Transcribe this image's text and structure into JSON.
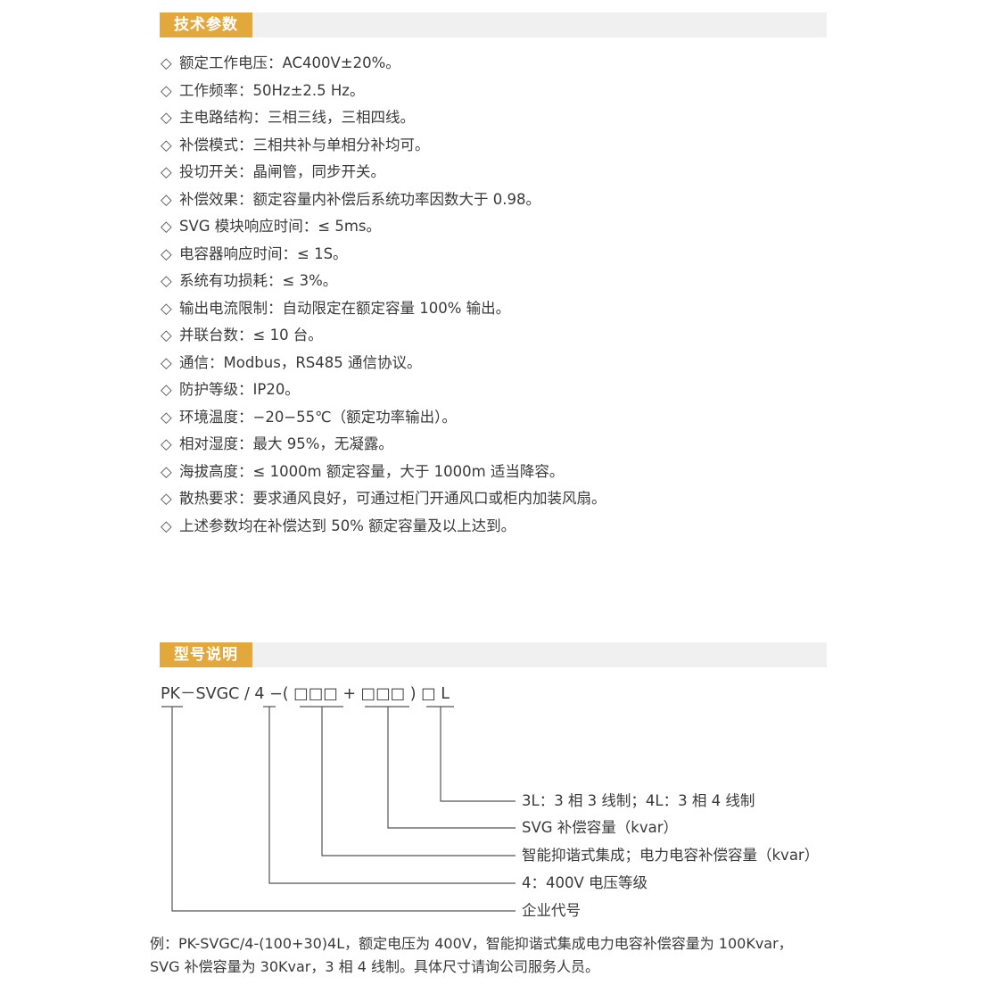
{
  "section1": {
    "title": "技术参数",
    "bullet": "◇",
    "items": [
      "额定工作电压：AC400V±20%。",
      "工作频率：50Hz±2.5 Hz。",
      "主电路结构：三相三线，三相四线。",
      "补偿模式：三相共补与单相分补均可。",
      "投切开关：晶闸管，同步开关。",
      "补偿效果：额定容量内补偿后系统功率因数大于 0.98。",
      "SVG 模块响应时间：≤ 5ms。",
      "电容器响应时间：≤ 1S。",
      "系统有功损耗：≤ 3%。",
      "输出电流限制：自动限定在额定容量 100% 输出。",
      "并联台数：≤ 10 台。",
      "通信：Modbus，RS485 通信协议。",
      "防护等级：IP20。",
      "环境温度：−20−55℃（额定功率输出）。",
      "相对湿度：最大 95%，无凝露。",
      "海拔高度：≤ 1000m 额定容量，大于 1000m 适当降容。",
      "散热要求：要求通风良好，可通过柜门开通风口或柜内加装风扇。",
      "上述参数均在补偿达到 50% 额定容量及以上达到。"
    ]
  },
  "section2": {
    "title": "型号说明",
    "model_code": "PK－SVGC / 4 −( □□□ + □□□ ) □ L",
    "descriptions": [
      "3L：3 相 3 线制；4L：3 相 4 线制",
      "SVG 补偿容量（kvar）",
      "智能抑谐式集成；电力电容补偿容量（kvar）",
      "4：400V 电压等级",
      "企业代号"
    ],
    "example_line1": "例：PK-SVGC/4-(100+30)4L，额定电压为 400V，智能抑谐式集成电力电容补偿容量为 100Kvar，",
    "example_line2": "SVG 补偿容量为 30Kvar，3 相 4 线制。具体尺寸请询公司服务人员。"
  },
  "colors": {
    "accent": "#e3a83b",
    "bar_background": "#f0f0f0",
    "text": "#3a3a3a",
    "line": "#555555"
  }
}
